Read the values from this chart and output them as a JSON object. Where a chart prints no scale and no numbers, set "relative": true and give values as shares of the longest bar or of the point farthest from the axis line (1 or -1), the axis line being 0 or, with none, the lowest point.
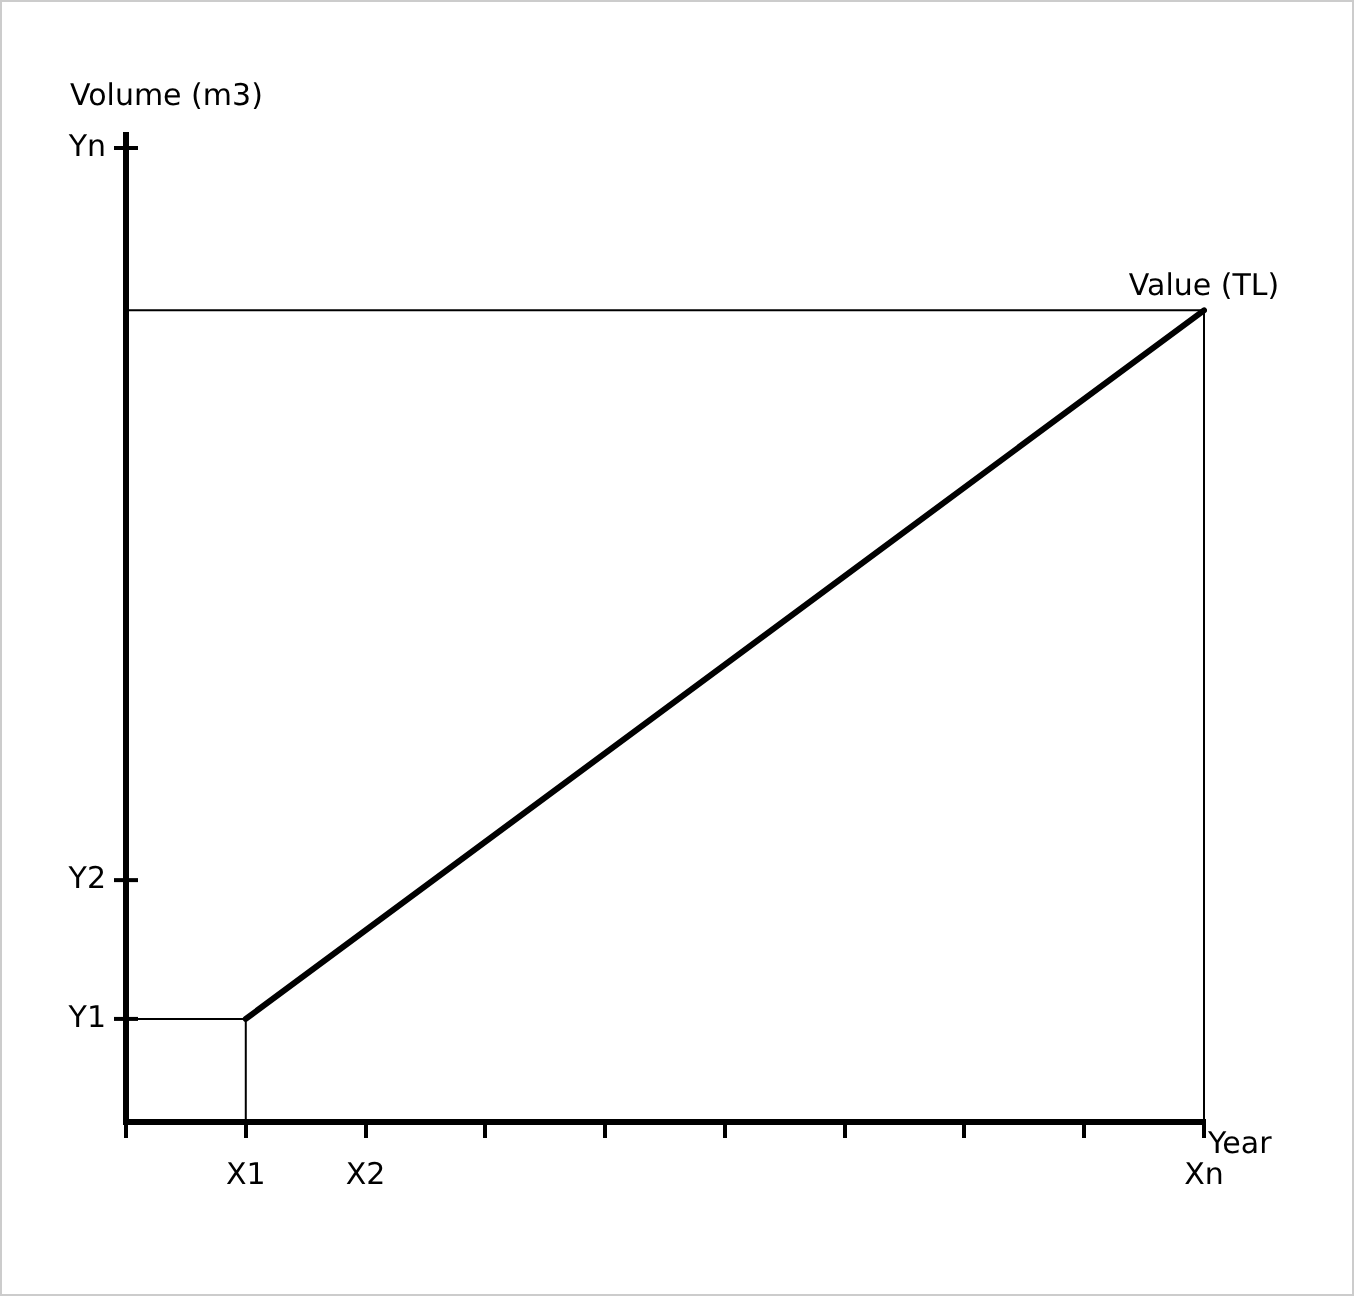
{
  "chart_data": {
    "type": "line",
    "xlabel": "Year",
    "categories": [
      null,
      "X1",
      "X2",
      null,
      null,
      null,
      null,
      null,
      null,
      "Xn"
    ],
    "series": [
      {
        "color": "#000000",
        "values": [
          null,
          0.127,
          null,
          null,
          null,
          null,
          null,
          null,
          null,
          1
        ]
      }
    ],
    "relative": true,
    "ref_lines": [
      {
        "axis": "y",
        "value": 0.127,
        "label": "Y1"
      },
      {
        "axis": "y",
        "value": 0.298,
        "label": "Y2"
      },
      {
        "axis": "y",
        "value": 1.2,
        "label": "Yn"
      }
    ],
    "marker": "none",
    "line_style": "solid",
    "grid": false,
    "legend": false,
    "annotations": [
      "Volume (m3)",
      {
        "text": "Value (TL)",
        "x": "Xn",
        "y": 1
      }
    ]
  }
}
